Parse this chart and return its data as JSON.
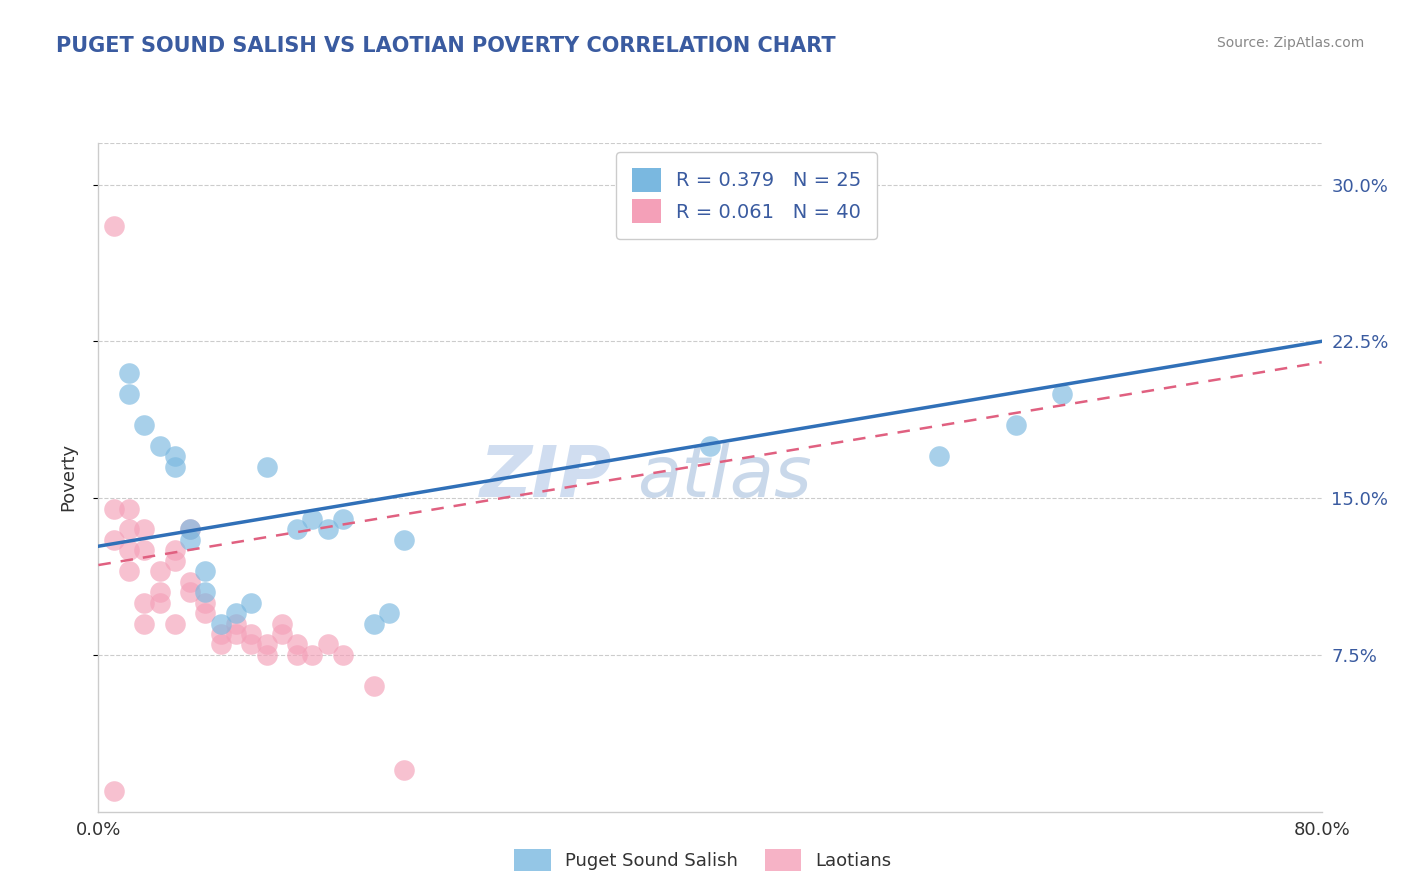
{
  "title": "PUGET SOUND SALISH VS LAOTIAN POVERTY CORRELATION CHART",
  "source": "Source: ZipAtlas.com",
  "ylabel": "Poverty",
  "yticks": [
    0.075,
    0.15,
    0.225,
    0.3
  ],
  "ytick_labels": [
    "7.5%",
    "15.0%",
    "22.5%",
    "30.0%"
  ],
  "xlim": [
    0.0,
    0.8
  ],
  "ylim": [
    0.0,
    0.32
  ],
  "legend_r1": "R = 0.379",
  "legend_n1": "N = 25",
  "legend_r2": "R = 0.061",
  "legend_n2": "N = 40",
  "watermark_part1": "ZIP",
  "watermark_part2": "atlas",
  "blue_color": "#7ab8e0",
  "pink_color": "#f4a0b8",
  "blue_line_color": "#3070b8",
  "pink_line_color": "#e06080",
  "title_color": "#3a5ba0",
  "label_color": "#3a5ba0",
  "grid_color": "#cccccc",
  "blue_scatter_x": [
    0.02,
    0.02,
    0.03,
    0.04,
    0.05,
    0.05,
    0.06,
    0.06,
    0.07,
    0.07,
    0.08,
    0.09,
    0.1,
    0.11,
    0.13,
    0.14,
    0.15,
    0.16,
    0.18,
    0.19,
    0.2,
    0.4,
    0.55,
    0.6,
    0.63
  ],
  "blue_scatter_y": [
    0.21,
    0.2,
    0.185,
    0.175,
    0.17,
    0.165,
    0.135,
    0.13,
    0.105,
    0.115,
    0.09,
    0.095,
    0.1,
    0.165,
    0.135,
    0.14,
    0.135,
    0.14,
    0.09,
    0.095,
    0.13,
    0.175,
    0.17,
    0.185,
    0.2
  ],
  "pink_scatter_x": [
    0.01,
    0.01,
    0.01,
    0.02,
    0.02,
    0.02,
    0.02,
    0.03,
    0.03,
    0.03,
    0.03,
    0.04,
    0.04,
    0.04,
    0.05,
    0.05,
    0.05,
    0.06,
    0.06,
    0.06,
    0.07,
    0.07,
    0.08,
    0.08,
    0.09,
    0.09,
    0.1,
    0.1,
    0.11,
    0.11,
    0.12,
    0.12,
    0.13,
    0.13,
    0.14,
    0.15,
    0.16,
    0.18,
    0.2,
    0.01
  ],
  "pink_scatter_y": [
    0.28,
    0.145,
    0.13,
    0.145,
    0.135,
    0.125,
    0.115,
    0.135,
    0.125,
    0.1,
    0.09,
    0.115,
    0.105,
    0.1,
    0.125,
    0.12,
    0.09,
    0.11,
    0.105,
    0.135,
    0.1,
    0.095,
    0.08,
    0.085,
    0.085,
    0.09,
    0.085,
    0.08,
    0.075,
    0.08,
    0.085,
    0.09,
    0.075,
    0.08,
    0.075,
    0.08,
    0.075,
    0.06,
    0.02,
    0.01
  ],
  "blue_line_x0": 0.0,
  "blue_line_y0": 0.127,
  "blue_line_x1": 0.8,
  "blue_line_y1": 0.225,
  "pink_line_x0": 0.0,
  "pink_line_y0": 0.118,
  "pink_line_x1": 0.8,
  "pink_line_y1": 0.215
}
